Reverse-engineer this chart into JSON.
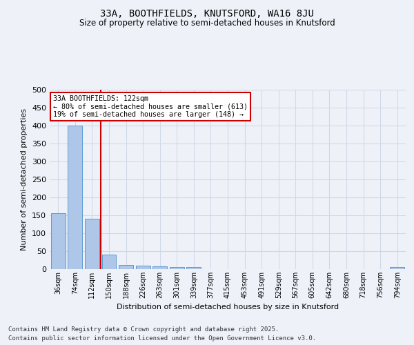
{
  "title1": "33A, BOOTHFIELDS, KNUTSFORD, WA16 8JU",
  "title2": "Size of property relative to semi-detached houses in Knutsford",
  "xlabel": "Distribution of semi-detached houses by size in Knutsford",
  "ylabel": "Number of semi-detached properties",
  "categories": [
    "36sqm",
    "74sqm",
    "112sqm",
    "150sqm",
    "188sqm",
    "226sqm",
    "263sqm",
    "301sqm",
    "339sqm",
    "377sqm",
    "415sqm",
    "453sqm",
    "491sqm",
    "529sqm",
    "567sqm",
    "605sqm",
    "642sqm",
    "680sqm",
    "718sqm",
    "756sqm",
    "794sqm"
  ],
  "values": [
    155,
    400,
    140,
    40,
    12,
    9,
    8,
    5,
    6,
    0,
    0,
    0,
    0,
    0,
    0,
    0,
    0,
    0,
    0,
    0,
    5
  ],
  "bar_color": "#aec6e8",
  "bar_edge_color": "#5b9bd5",
  "vline_x": 2.5,
  "vline_color": "#cc0000",
  "annotation_title": "33A BOOTHFIELDS: 122sqm",
  "annotation_line1": "← 80% of semi-detached houses are smaller (613)",
  "annotation_line2": "19% of semi-detached houses are larger (148) →",
  "annotation_box_color": "#cc0000",
  "ylim": [
    0,
    500
  ],
  "yticks": [
    0,
    50,
    100,
    150,
    200,
    250,
    300,
    350,
    400,
    450,
    500
  ],
  "footnote1": "Contains HM Land Registry data © Crown copyright and database right 2025.",
  "footnote2": "Contains public sector information licensed under the Open Government Licence v3.0.",
  "grid_color": "#d0d8e8",
  "background_color": "#eef2f8"
}
